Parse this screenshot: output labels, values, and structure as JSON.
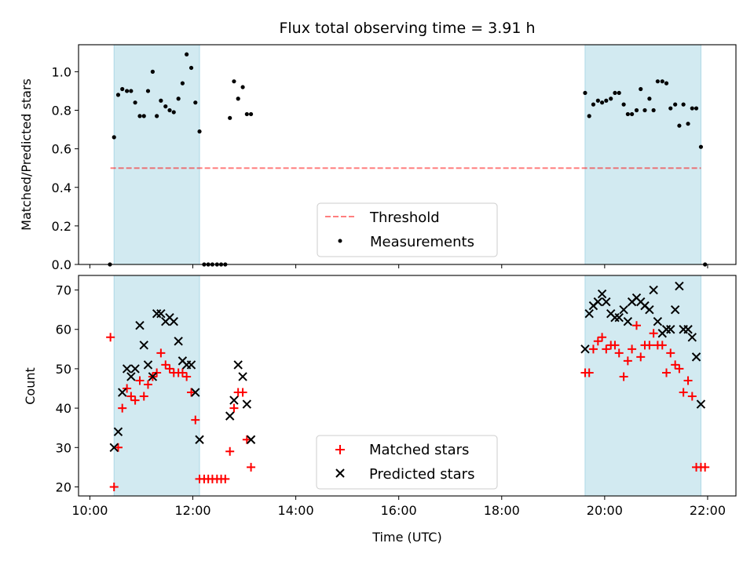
{
  "title": "Flux total observing time = 3.91 h",
  "x_axis": {
    "label": "Time (UTC)",
    "ticks": [
      "10:00",
      "12:00",
      "14:00",
      "16:00",
      "18:00",
      "20:00",
      "22:00"
    ],
    "tick_hours": [
      10,
      12,
      14,
      16,
      18,
      20,
      22
    ],
    "range_hours": [
      9.78,
      22.55
    ]
  },
  "colors": {
    "shade": "#add8e6",
    "threshold": "#ff0000",
    "measurement": "#000000",
    "matched": "#ff0000",
    "predicted": "#000000"
  },
  "chart_data": [
    {
      "type": "scatter",
      "panel": "top",
      "ylabel": "Matched/Predicted stars",
      "ylim": [
        0,
        1.14
      ],
      "yticks": [
        "0.0",
        "0.2",
        "0.4",
        "0.6",
        "0.8",
        "1.0"
      ],
      "ytick_values": [
        0.0,
        0.2,
        0.4,
        0.6,
        0.8,
        1.0
      ],
      "shaded_intervals_hours": [
        [
          10.47,
          12.13
        ],
        [
          19.62,
          21.87
        ]
      ],
      "legend": {
        "placement": "lower-center",
        "entries": [
          "Threshold",
          "Measurements"
        ]
      },
      "threshold": {
        "name": "Threshold",
        "y": 0.5,
        "x_range_hours": [
          10.4,
          21.87
        ]
      },
      "series": [
        {
          "name": "Measurements",
          "x_hours": [
            10.39,
            10.47,
            10.55,
            10.63,
            10.72,
            10.8,
            10.88,
            10.97,
            11.05,
            11.13,
            11.22,
            11.3,
            11.38,
            11.47,
            11.55,
            11.63,
            11.72,
            11.8,
            11.88,
            11.97,
            12.05,
            12.13,
            12.22,
            12.3,
            12.38,
            12.47,
            12.55,
            12.63,
            12.72,
            12.8,
            12.88,
            12.97,
            13.05,
            13.13,
            19.62,
            19.7,
            19.78,
            19.87,
            19.95,
            20.03,
            20.12,
            20.2,
            20.28,
            20.37,
            20.45,
            20.53,
            20.62,
            20.7,
            20.78,
            20.87,
            20.95,
            21.03,
            21.12,
            21.2,
            21.28,
            21.37,
            21.45,
            21.53,
            21.62,
            21.7,
            21.78,
            21.87,
            21.95
          ],
          "y": [
            0.0,
            0.66,
            0.88,
            0.91,
            0.9,
            0.9,
            0.84,
            0.77,
            0.77,
            0.9,
            1.0,
            0.77,
            0.85,
            0.82,
            0.8,
            0.79,
            0.86,
            0.94,
            1.09,
            1.02,
            0.84,
            0.69,
            0.0,
            0.0,
            0.0,
            0.0,
            0.0,
            0.0,
            0.76,
            0.95,
            0.86,
            0.92,
            0.78,
            0.78,
            0.89,
            0.77,
            0.83,
            0.85,
            0.84,
            0.85,
            0.86,
            0.89,
            0.89,
            0.83,
            0.78,
            0.78,
            0.8,
            0.91,
            0.8,
            0.86,
            0.8,
            0.95,
            0.95,
            0.94,
            0.81,
            0.83,
            0.72,
            0.83,
            0.73,
            0.81,
            0.81,
            0.61,
            0.0
          ]
        }
      ]
    },
    {
      "type": "scatter",
      "panel": "bottom",
      "ylabel": "Count",
      "xlabel": "Time (UTC)",
      "ylim": [
        17.7,
        73.7
      ],
      "yticks": [
        "20",
        "30",
        "40",
        "50",
        "60",
        "70"
      ],
      "ytick_values": [
        20,
        30,
        40,
        50,
        60,
        70
      ],
      "shaded_intervals_hours": [
        [
          10.47,
          12.13
        ],
        [
          19.62,
          21.87
        ]
      ],
      "legend": {
        "placement": "lower-center",
        "entries": [
          "Matched stars",
          "Predicted stars"
        ]
      },
      "series": [
        {
          "name": "Matched stars",
          "marker": "+",
          "x_hours": [
            10.4,
            10.47,
            10.55,
            10.63,
            10.72,
            10.8,
            10.88,
            10.97,
            11.05,
            11.13,
            11.22,
            11.3,
            11.38,
            11.47,
            11.55,
            11.63,
            11.72,
            11.8,
            11.88,
            11.97,
            12.05,
            12.13,
            12.22,
            12.3,
            12.38,
            12.47,
            12.55,
            12.63,
            12.72,
            12.8,
            12.88,
            12.97,
            13.05,
            13.13,
            19.62,
            19.7,
            19.78,
            19.87,
            19.95,
            20.03,
            20.12,
            20.2,
            20.28,
            20.37,
            20.45,
            20.53,
            20.62,
            20.7,
            20.78,
            20.87,
            20.95,
            21.03,
            21.12,
            21.2,
            21.28,
            21.37,
            21.45,
            21.53,
            21.62,
            21.7,
            21.78,
            21.87,
            21.95
          ],
          "y": [
            58,
            20,
            30,
            40,
            45,
            43,
            42,
            47,
            43,
            46,
            48,
            49,
            54,
            51,
            50,
            49,
            49,
            49,
            48,
            44,
            37,
            22,
            22,
            22,
            22,
            22,
            22,
            22,
            29,
            40,
            44,
            44,
            32,
            25,
            49,
            49,
            55,
            57,
            58,
            55,
            56,
            56,
            54,
            48,
            52,
            55,
            61,
            53,
            56,
            56,
            59,
            56,
            56,
            49,
            54,
            51,
            50,
            44,
            47,
            43,
            25,
            25,
            25
          ]
        },
        {
          "name": "Predicted stars",
          "marker": "x",
          "x_hours": [
            10.47,
            10.55,
            10.63,
            10.72,
            10.8,
            10.88,
            10.97,
            11.05,
            11.13,
            11.22,
            11.3,
            11.38,
            11.47,
            11.55,
            11.63,
            11.72,
            11.8,
            11.88,
            11.97,
            12.05,
            12.13,
            12.72,
            12.8,
            12.88,
            12.97,
            13.05,
            13.13,
            19.62,
            19.7,
            19.78,
            19.87,
            19.95,
            20.03,
            20.12,
            20.2,
            20.28,
            20.37,
            20.45,
            20.53,
            20.62,
            20.7,
            20.78,
            20.87,
            20.95,
            21.03,
            21.12,
            21.2,
            21.28,
            21.37,
            21.45,
            21.53,
            21.62,
            21.7,
            21.78,
            21.87
          ],
          "y": [
            30,
            34,
            44,
            50,
            48,
            50,
            61,
            56,
            51,
            48,
            64,
            64,
            62,
            63,
            62,
            57,
            52,
            51,
            51,
            44,
            32,
            38,
            42,
            51,
            48,
            41,
            32,
            55,
            64,
            66,
            67,
            69,
            67,
            64,
            63,
            63,
            65,
            62,
            67,
            68,
            67,
            66,
            65,
            70,
            62,
            59,
            60,
            60,
            65,
            71,
            60,
            60,
            58,
            53,
            41
          ]
        }
      ]
    }
  ]
}
